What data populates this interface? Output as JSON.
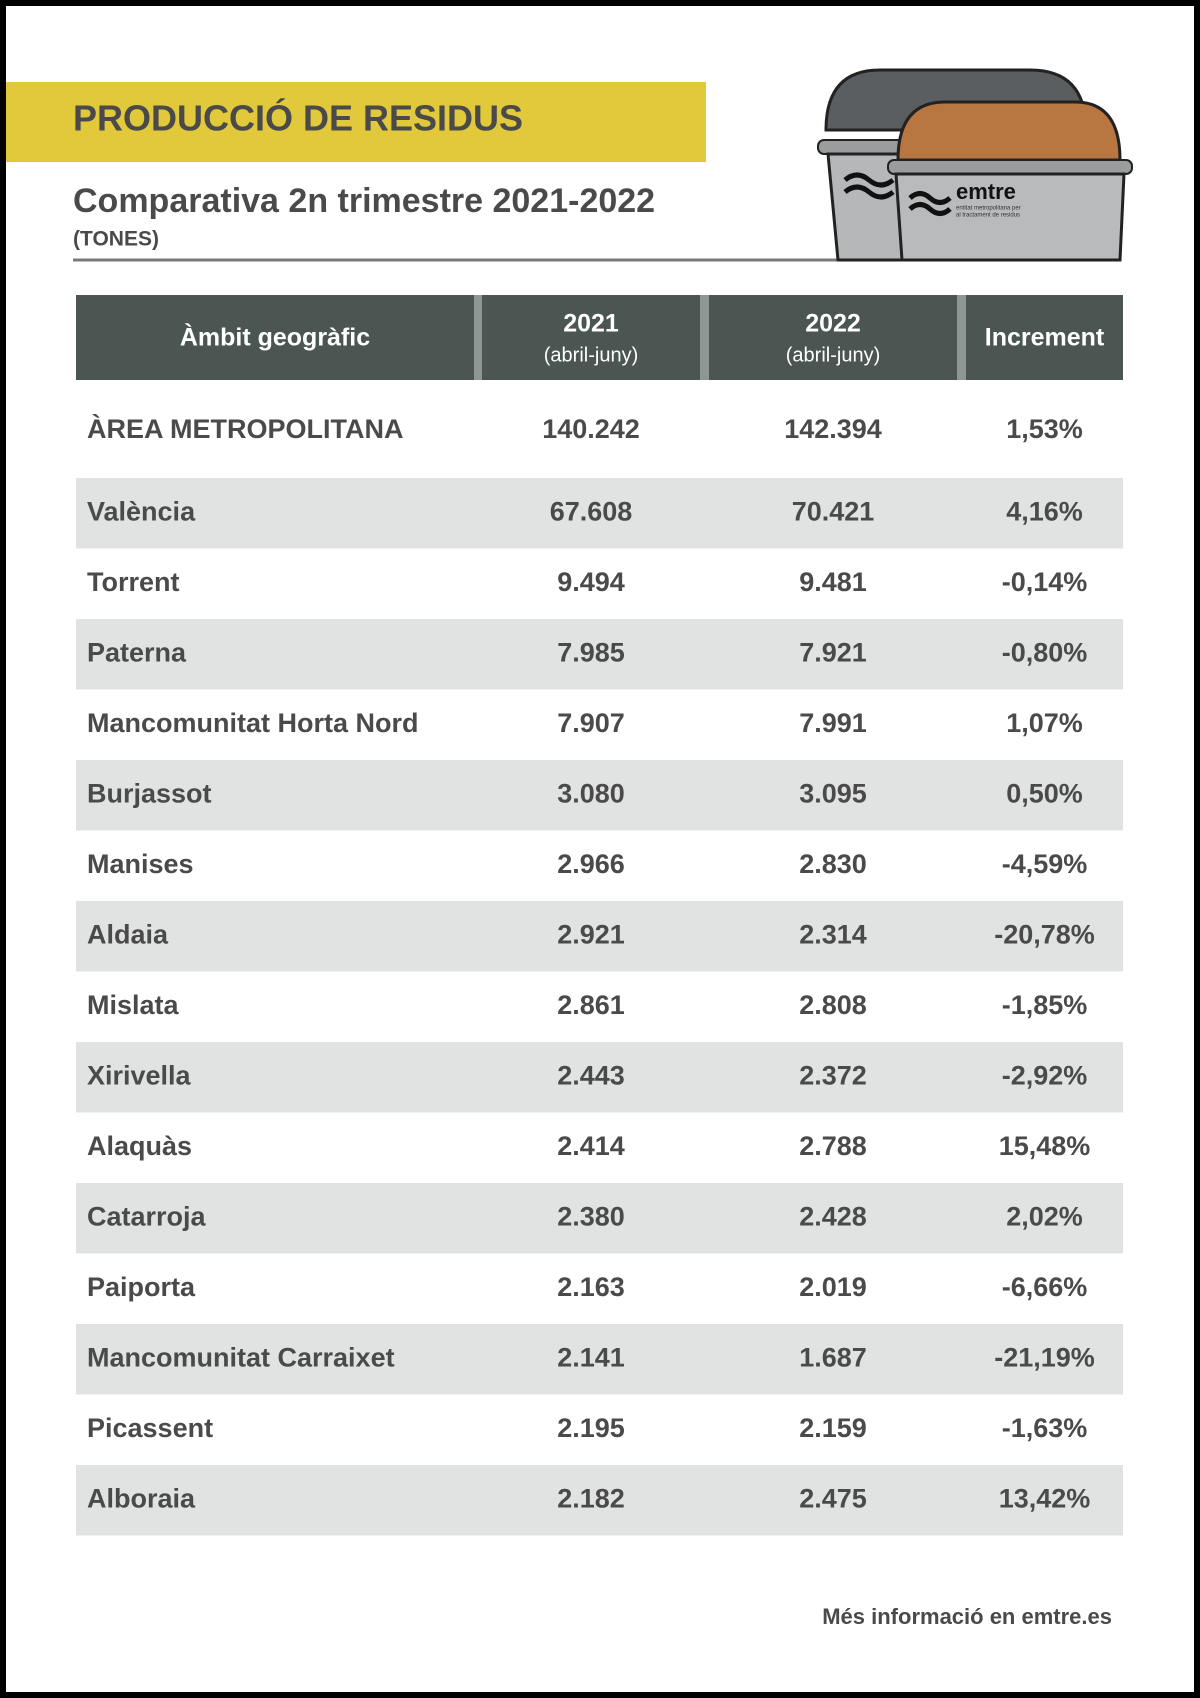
{
  "header": {
    "title": "PRODUCCIÓ DE RESIDUS",
    "subtitle": "Comparativa 2n trimestre 2021-2022",
    "unit": "(TONES)"
  },
  "logo": {
    "name": "emtre",
    "tagline": [
      "entitat metropolitana per",
      "al tractament de residus"
    ]
  },
  "table": {
    "columns": [
      {
        "label": "Àmbit geogràfic"
      },
      {
        "label": "2021",
        "sublabel": "(abril-juny)"
      },
      {
        "label": "2022",
        "sublabel": "(abril-juny)"
      },
      {
        "label": "Increment"
      }
    ],
    "rows": [
      [
        "ÀREA METROPOLITANA",
        "140.242",
        "142.394",
        "1,53%"
      ],
      [
        "València",
        "67.608",
        "70.421",
        "4,16%"
      ],
      [
        "Torrent",
        "9.494",
        "9.481",
        "-0,14%"
      ],
      [
        "Paterna",
        "7.985",
        "7.921",
        "-0,80%"
      ],
      [
        "Mancomunitat Horta Nord",
        "7.907",
        "7.991",
        "1,07%"
      ],
      [
        "Burjassot",
        "3.080",
        "3.095",
        "0,50%"
      ],
      [
        "Manises",
        "2.966",
        "2.830",
        "-4,59%"
      ],
      [
        "Aldaia",
        "2.921",
        "2.314",
        "-20,78%"
      ],
      [
        "Mislata",
        "2.861",
        "2.808",
        "-1,85%"
      ],
      [
        "Xirivella",
        "2.443",
        "2.372",
        "-2,92%"
      ],
      [
        "Alaquàs",
        "2.414",
        "2.788",
        "15,48%"
      ],
      [
        "Catarroja",
        "2.380",
        "2.428",
        "2,02%"
      ],
      [
        "Paiporta",
        "2.163",
        "2.019",
        "-6,66%"
      ],
      [
        "Mancomunitat Carraixet",
        "2.141",
        "1.687",
        "-21,19%"
      ],
      [
        "Picassent",
        "2.195",
        "2.159",
        "-1,63%"
      ],
      [
        "Alboraia",
        "2.182",
        "2.475",
        "13,42%"
      ]
    ]
  },
  "footer": "Més informació en emtre.es"
}
